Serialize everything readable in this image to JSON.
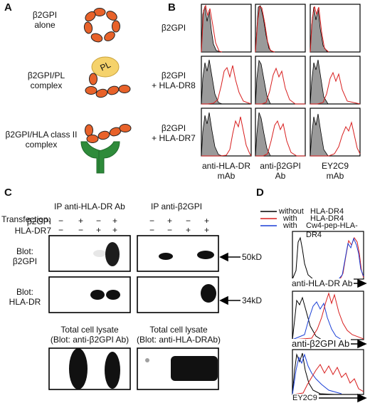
{
  "panels": {
    "A": "A",
    "B": "B",
    "C": "C",
    "D": "D"
  },
  "panel_a": {
    "rows": [
      {
        "label_lines": [
          "β2GPI",
          "alone"
        ]
      },
      {
        "label_lines": [
          "β2GPI/PL",
          "complex"
        ],
        "pl_text": "PL"
      },
      {
        "label_lines": [
          "β2GPI/HLA class II",
          "complex"
        ]
      }
    ]
  },
  "panel_b": {
    "row_labels": [
      [
        "β2GPI"
      ],
      [
        "β2GPI",
        "+ HLA-DR8"
      ],
      [
        "β2GPI",
        "+ HLA-DR7"
      ]
    ],
    "col_labels": [
      [
        "anti-HLA-DR",
        "mAb"
      ],
      [
        "anti-β2GPI",
        "Ab"
      ],
      [
        "EY2C9",
        "mAb"
      ]
    ],
    "colors": {
      "control_fill": "#9a9a9a",
      "stain_line": "#d81e1e",
      "control_line": "#000000"
    }
  },
  "panel_c": {
    "transfection_label": "Transfection:",
    "row_markers": [
      "β2GPI",
      "HLA-DR7"
    ],
    "ip_titles": [
      "IP  anti-HLA-DR Ab",
      "IP  anti-β2GPI"
    ],
    "left_signs": [
      [
        "−",
        "+",
        "−",
        "+"
      ],
      [
        "−",
        "−",
        "+",
        "+"
      ]
    ],
    "right_signs": [
      [
        "−",
        "+",
        "−",
        "+"
      ],
      [
        "−",
        "−",
        "+",
        "+"
      ]
    ],
    "blots": [
      [
        "Blot:",
        "β2GPI"
      ],
      [
        "Blot:",
        "HLA-DR"
      ]
    ],
    "sizes": [
      "50kD",
      "34kD"
    ],
    "lysate_titles": [
      [
        "Total cell lysate",
        "(Blot: anti-β2GPI Ab)"
      ],
      [
        "Total cell lysate",
        "(Blot: anti-HLA-DRAb)"
      ]
    ]
  },
  "panel_d": {
    "legend": [
      {
        "prefix": "without",
        "label": "HLA-DR4",
        "color": "#000000"
      },
      {
        "prefix": "with",
        "label": "HLA-DR4",
        "color": "#d81e1e"
      },
      {
        "prefix": "with",
        "label": "Cw4-pep-HLA-DR4",
        "color": "#1a3fd6"
      }
    ],
    "axis_labels": [
      "anti-HLA-DR Ab",
      "anti-β2GPI Ab",
      "EY2C9"
    ]
  }
}
